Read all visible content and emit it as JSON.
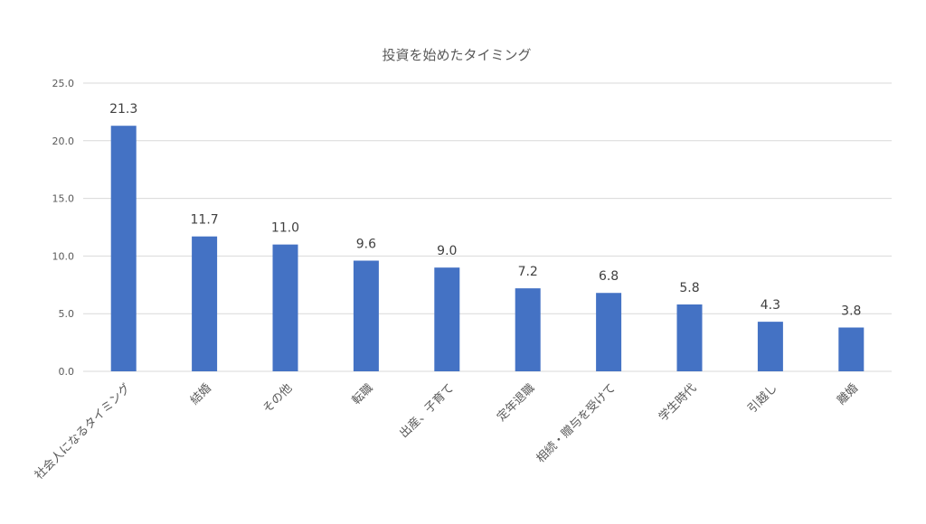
{
  "chart_data": {
    "type": "bar",
    "title": "投資を始めたタイミング",
    "xlabel": "",
    "ylabel": "",
    "categories": [
      "社会人になるタイミング",
      "結婚",
      "その他",
      "転職",
      "出産、子育て",
      "定年退職",
      "相続・贈与を受けて",
      "学生時代",
      "引越し",
      "離婚"
    ],
    "values": [
      21.3,
      11.7,
      11.0,
      9.6,
      9.0,
      7.2,
      6.8,
      5.8,
      4.3,
      3.8
    ],
    "value_labels": [
      "21.3",
      "11.7",
      "11.0",
      "9.6",
      "9.0",
      "7.2",
      "6.8",
      "5.8",
      "4.3",
      "3.8"
    ],
    "ylim": [
      0,
      25
    ],
    "yticks": [
      0,
      5,
      10,
      15,
      20,
      25
    ],
    "ytick_labels": [
      "0.0",
      "5.0",
      "10.0",
      "15.0",
      "20.0",
      "25.0"
    ],
    "grid": true,
    "legend": "none",
    "bar_color": "#4472C4",
    "grid_color": "#D9D9D9",
    "text_color": "#595959",
    "label_color": "#404040"
  }
}
